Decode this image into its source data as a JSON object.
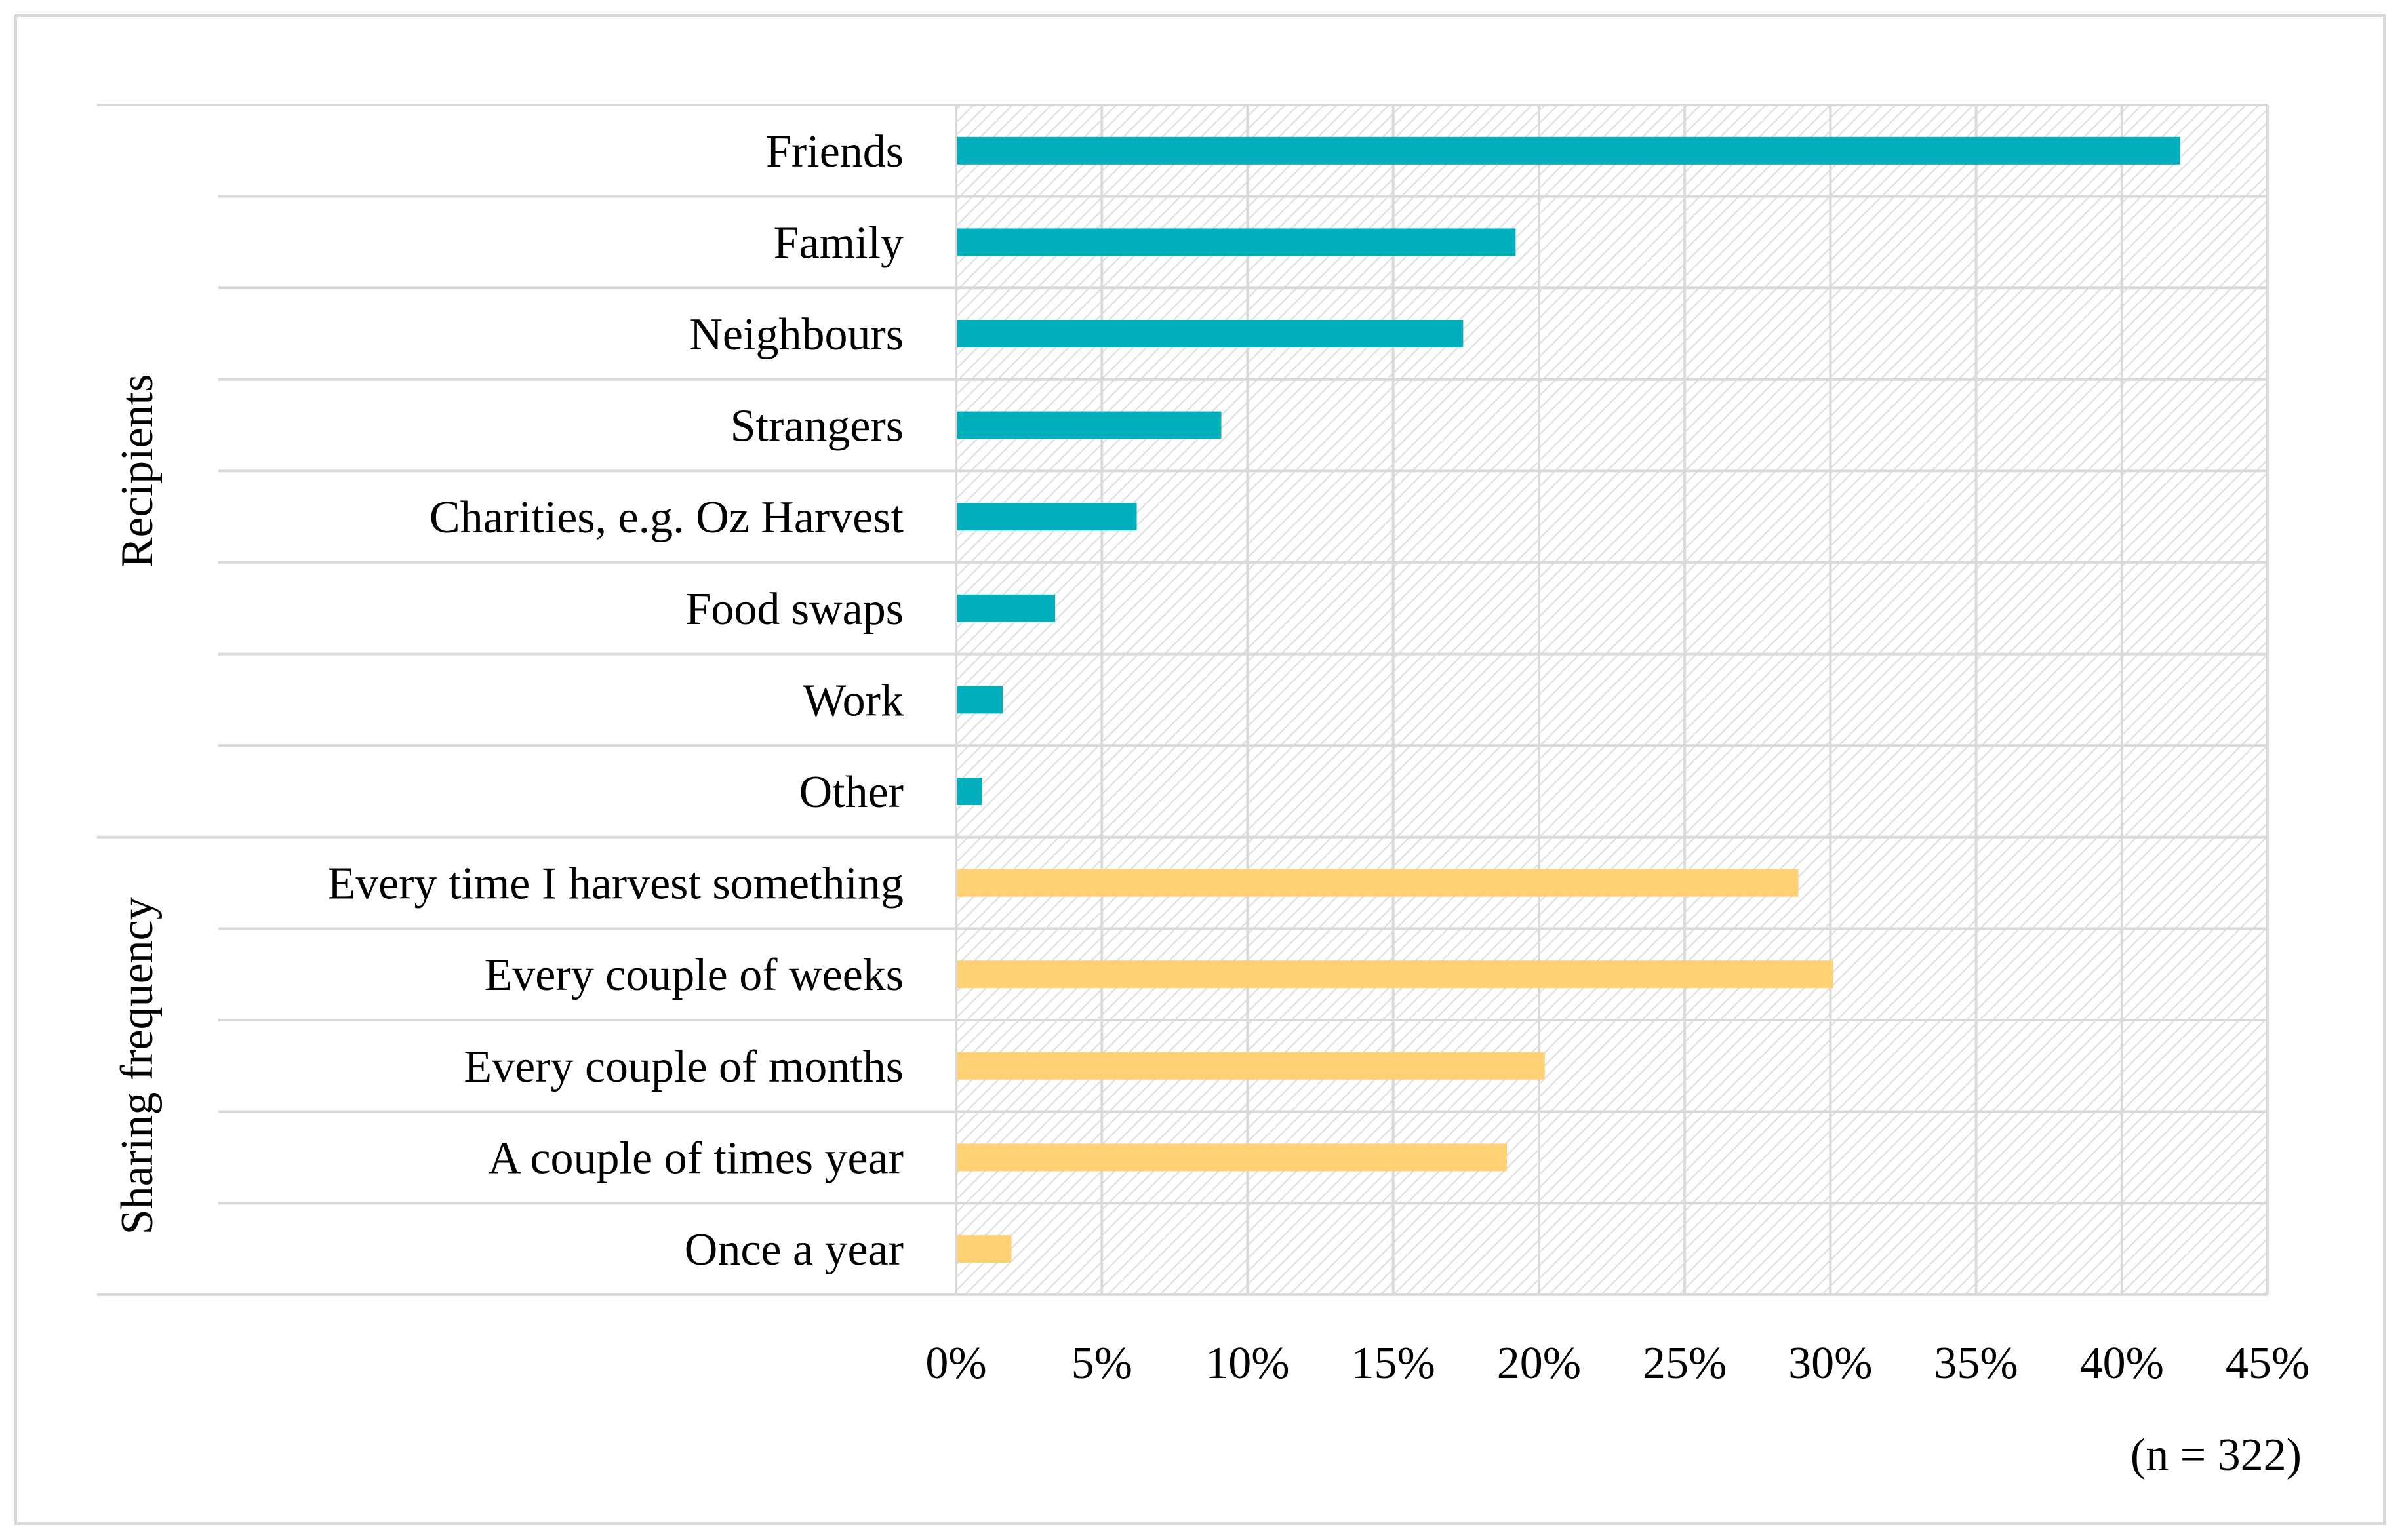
{
  "chart_data": {
    "type": "bar",
    "orientation": "horizontal",
    "xlim": [
      0,
      45
    ],
    "x_ticks": [
      "0%",
      "5%",
      "10%",
      "15%",
      "20%",
      "25%",
      "30%",
      "35%",
      "40%",
      "45%"
    ],
    "grid": true,
    "note": "(n = 322)",
    "groups": [
      {
        "name": "Recipients",
        "color": "#00AFBB",
        "categories": [
          "Friends",
          "Family",
          "Neighbours",
          "Strangers",
          "Charities, e.g. Oz Harvest",
          "Food swaps",
          "Work",
          "Other"
        ],
        "values": [
          42.0,
          19.2,
          17.4,
          9.1,
          6.2,
          3.4,
          1.6,
          0.9
        ]
      },
      {
        "name": "Sharing frequency",
        "color": "#FFD074",
        "categories": [
          "Every time I harvest something",
          "Every couple of weeks",
          "Every couple of months",
          "A couple of times year",
          "Once a year"
        ],
        "values": [
          28.9,
          30.1,
          20.2,
          18.9,
          1.9
        ]
      }
    ]
  }
}
